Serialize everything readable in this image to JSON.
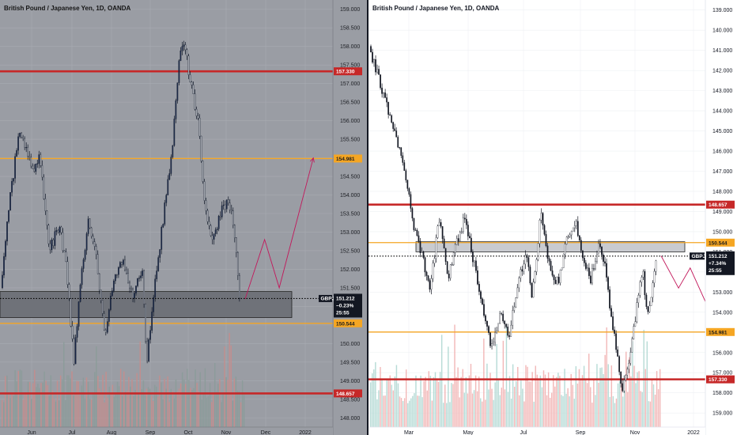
{
  "chart_data": [
    {
      "type": "candlestick",
      "title": "British Pound / Japanese Yen, 1D, OANDA",
      "symbol": "GBPJPY",
      "price_info": {
        "price": "151.212",
        "change": "−0.23%",
        "countdown": "25:55"
      },
      "y_axis": {
        "labels": [
          "159.000",
          "158.500",
          "158.000",
          "157.500",
          "157.000",
          "156.500",
          "156.000",
          "155.500",
          "155.000",
          "154.500",
          "154.000",
          "153.500",
          "153.000",
          "152.500",
          "152.000",
          "151.500",
          "151.000",
          "150.500",
          "150.000",
          "149.500",
          "149.000",
          "148.500",
          "148.000"
        ],
        "ylim": [
          147.75,
          159.25
        ],
        "inverted": false
      },
      "x_axis": {
        "labels": [
          "Jun",
          "Jul",
          "Aug",
          "Sep",
          "Oct",
          "Nov",
          "Dec",
          "2022"
        ]
      },
      "levels": [
        {
          "label": "157.330",
          "value": 157.33,
          "color": "#c62828",
          "kind": "thick"
        },
        {
          "label": "154.981",
          "value": 154.981,
          "color": "#f5a623",
          "kind": "thin"
        },
        {
          "label": "150.544",
          "value": 150.544,
          "color": "#f5a623",
          "kind": "thin"
        },
        {
          "label": "148.657",
          "value": 148.657,
          "color": "#c62828",
          "kind": "thick"
        }
      ],
      "zone": {
        "low": 150.7,
        "high": 151.4
      },
      "current_price": 151.212,
      "projection_arrow": [
        {
          "t": 1.0,
          "v": 151.2
        },
        {
          "t": 1.08,
          "v": 152.8
        },
        {
          "t": 1.14,
          "v": 151.5
        },
        {
          "t": 1.28,
          "v": 155.0
        }
      ],
      "price_path": [
        {
          "t": 0.0,
          "v": 151.5
        },
        {
          "t": 0.03,
          "v": 153.6
        },
        {
          "t": 0.045,
          "v": 154.2
        },
        {
          "t": 0.075,
          "v": 155.8
        },
        {
          "t": 0.1,
          "v": 155.3
        },
        {
          "t": 0.13,
          "v": 154.6
        },
        {
          "t": 0.16,
          "v": 155.0
        },
        {
          "t": 0.2,
          "v": 152.5
        },
        {
          "t": 0.24,
          "v": 153.2
        },
        {
          "t": 0.27,
          "v": 152.0
        },
        {
          "t": 0.3,
          "v": 149.5
        },
        {
          "t": 0.33,
          "v": 151.8
        },
        {
          "t": 0.36,
          "v": 153.3
        },
        {
          "t": 0.39,
          "v": 152.4
        },
        {
          "t": 0.43,
          "v": 150.2
        },
        {
          "t": 0.46,
          "v": 151.6
        },
        {
          "t": 0.5,
          "v": 152.2
        },
        {
          "t": 0.54,
          "v": 151.3
        },
        {
          "t": 0.58,
          "v": 152.0
        },
        {
          "t": 0.6,
          "v": 149.5
        },
        {
          "t": 0.63,
          "v": 151.5
        },
        {
          "t": 0.66,
          "v": 153.0
        },
        {
          "t": 0.7,
          "v": 155.0
        },
        {
          "t": 0.73,
          "v": 157.5
        },
        {
          "t": 0.75,
          "v": 158.2
        },
        {
          "t": 0.78,
          "v": 157.0
        },
        {
          "t": 0.81,
          "v": 156.0
        },
        {
          "t": 0.84,
          "v": 153.7
        },
        {
          "t": 0.87,
          "v": 152.7
        },
        {
          "t": 0.9,
          "v": 153.5
        },
        {
          "t": 0.925,
          "v": 153.8
        },
        {
          "t": 0.95,
          "v": 153.4
        },
        {
          "t": 0.965,
          "v": 152.6
        },
        {
          "t": 0.98,
          "v": 151.2
        }
      ]
    },
    {
      "type": "candlestick",
      "title": "British Pound / Japanese Yen, 1D, OANDA",
      "symbol": "GBPJPY",
      "price_info": {
        "price": "151.212",
        "change": "+7.34%",
        "countdown": "25:55"
      },
      "y_axis": {
        "labels": [
          "139.000",
          "140.000",
          "141.000",
          "142.000",
          "143.000",
          "144.000",
          "145.000",
          "146.000",
          "147.000",
          "148.000",
          "149.000",
          "150.000",
          "151.000",
          "152.000",
          "153.000",
          "154.000",
          "155.000",
          "156.000",
          "157.000",
          "158.000",
          "159.000"
        ],
        "ylim": [
          138.5,
          159.7
        ],
        "inverted": true
      },
      "x_axis": {
        "labels": [
          "Mar",
          "May",
          "Jul",
          "Sep",
          "Nov",
          "2022"
        ]
      },
      "levels": [
        {
          "label": "148.657",
          "value": 148.657,
          "color": "#c62828",
          "kind": "thick"
        },
        {
          "label": "150.544",
          "value": 150.544,
          "color": "#f5a623",
          "kind": "thin"
        },
        {
          "label": "154.981",
          "value": 154.981,
          "color": "#f5a623",
          "kind": "thin"
        },
        {
          "label": "157.330",
          "value": 157.33,
          "color": "#c62828",
          "kind": "thick"
        }
      ],
      "zone": {
        "low": 150.5,
        "high": 151.0
      },
      "current_price": 151.212,
      "projection_arrow": [
        {
          "t": 1.0,
          "v": 151.2
        },
        {
          "t": 1.06,
          "v": 152.8
        },
        {
          "t": 1.1,
          "v": 151.8
        },
        {
          "t": 1.2,
          "v": 155.0
        }
      ],
      "price_path": [
        {
          "t": 0.0,
          "v": 140.8
        },
        {
          "t": 0.03,
          "v": 142.3
        },
        {
          "t": 0.06,
          "v": 143.8
        },
        {
          "t": 0.09,
          "v": 145.3
        },
        {
          "t": 0.12,
          "v": 147.0
        },
        {
          "t": 0.15,
          "v": 149.5
        },
        {
          "t": 0.18,
          "v": 151.2
        },
        {
          "t": 0.21,
          "v": 152.8
        },
        {
          "t": 0.24,
          "v": 149.2
        },
        {
          "t": 0.27,
          "v": 152.3
        },
        {
          "t": 0.3,
          "v": 150.5
        },
        {
          "t": 0.33,
          "v": 149.3
        },
        {
          "t": 0.36,
          "v": 151.6
        },
        {
          "t": 0.39,
          "v": 153.8
        },
        {
          "t": 0.42,
          "v": 155.8
        },
        {
          "t": 0.45,
          "v": 154.2
        },
        {
          "t": 0.48,
          "v": 155.2
        },
        {
          "t": 0.51,
          "v": 152.5
        },
        {
          "t": 0.54,
          "v": 151.0
        },
        {
          "t": 0.56,
          "v": 153.2
        },
        {
          "t": 0.59,
          "v": 149.0
        },
        {
          "t": 0.62,
          "v": 151.8
        },
        {
          "t": 0.65,
          "v": 152.6
        },
        {
          "t": 0.68,
          "v": 150.2
        },
        {
          "t": 0.71,
          "v": 149.6
        },
        {
          "t": 0.74,
          "v": 151.5
        },
        {
          "t": 0.76,
          "v": 152.4
        },
        {
          "t": 0.79,
          "v": 150.6
        },
        {
          "t": 0.81,
          "v": 151.8
        },
        {
          "t": 0.84,
          "v": 155.0
        },
        {
          "t": 0.87,
          "v": 157.8
        },
        {
          "t": 0.9,
          "v": 155.8
        },
        {
          "t": 0.92,
          "v": 153.5
        },
        {
          "t": 0.94,
          "v": 152.0
        },
        {
          "t": 0.955,
          "v": 154.0
        },
        {
          "t": 0.97,
          "v": 153.3
        },
        {
          "t": 0.985,
          "v": 151.2
        }
      ]
    }
  ]
}
